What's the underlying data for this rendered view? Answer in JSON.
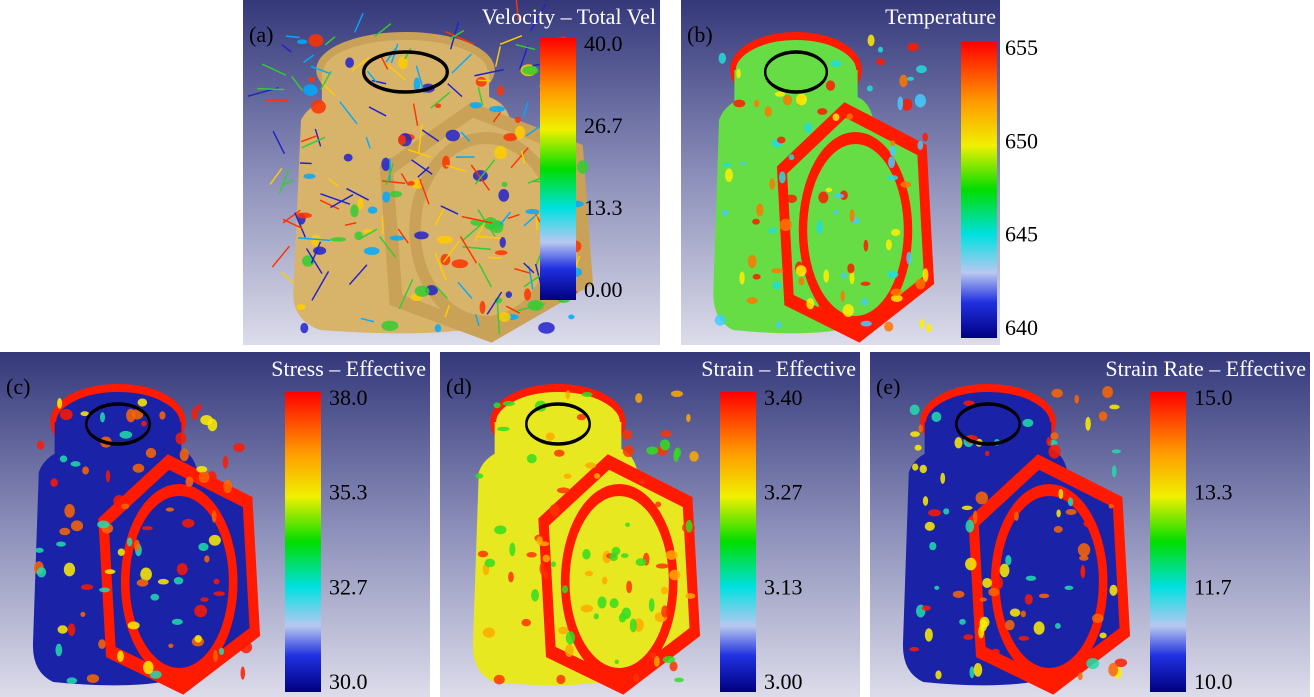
{
  "panels": [
    {
      "label": "(a)",
      "title": "Velocity – Total Vel",
      "ticks": [
        "40.0",
        "26.7",
        "13.3",
        "0.00"
      ]
    },
    {
      "label": "(b)",
      "title": "Temperature",
      "ticks": [
        "655",
        "650",
        "645",
        "640"
      ]
    },
    {
      "label": "(c)",
      "title": "Stress – Effective",
      "ticks": [
        "38.0",
        "35.3",
        "32.7",
        "30.0"
      ]
    },
    {
      "label": "(d)",
      "title": "Strain – Effective",
      "ticks": [
        "3.40",
        "3.27",
        "3.13",
        "3.00"
      ]
    },
    {
      "label": "(e)",
      "title": "Strain Rate – Effective",
      "ticks": [
        "15.0",
        "13.3",
        "11.7",
        "10.0"
      ]
    }
  ]
}
